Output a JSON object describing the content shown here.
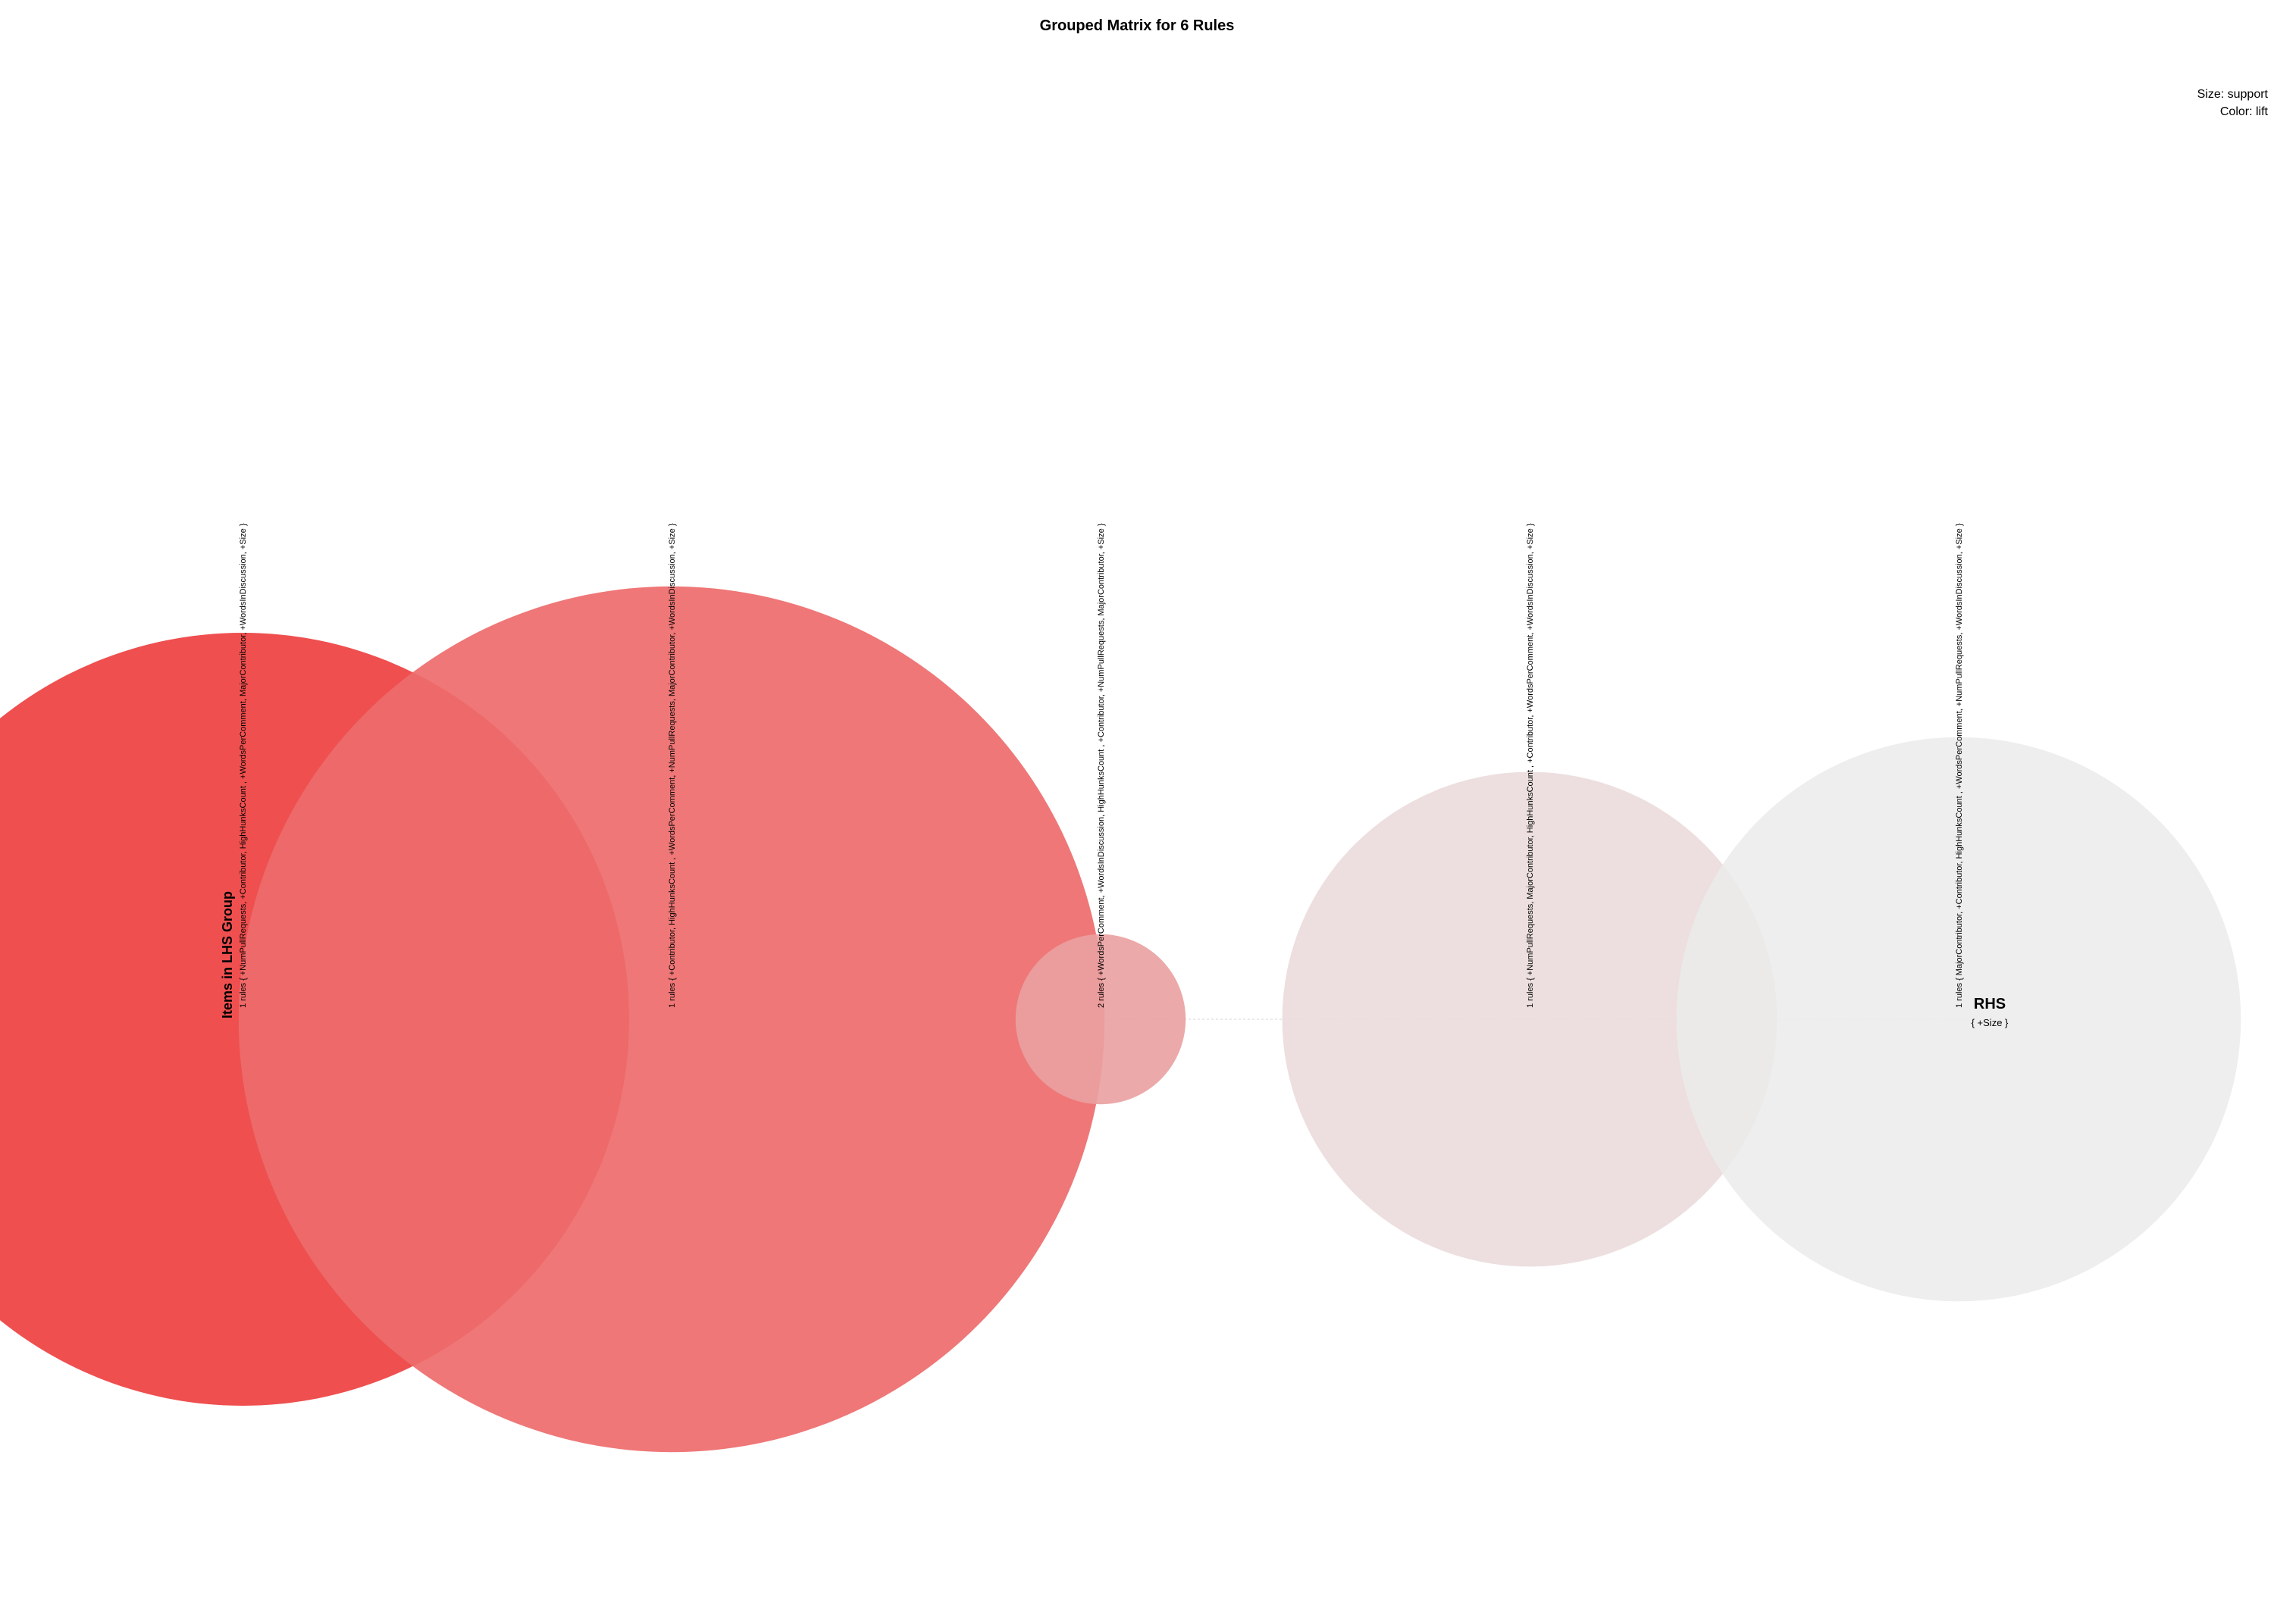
{
  "chart_data": {
    "type": "bubble-matrix",
    "title": "Grouped Matrix for 6 Rules",
    "legend": {
      "size_label": "Size: support",
      "color_label": "Color: lift",
      "placement": "top-right"
    },
    "x_axis_title": "Items in LHS Group",
    "y_axis_title": "RHS",
    "rhs_items": [
      "{ +Size }"
    ],
    "groups": [
      {
        "label": "1 rules { +NumPullRequests,  +Contributor,  HighHunksCount ,  +WordsPerComment,  MajorContributor,  +WordsInDiscussion,  +Size }",
        "rules": 1,
        "support": 1.0,
        "lift_rank": 1.0,
        "color": "#ef4f4f",
        "opacity": 1.0
      },
      {
        "label": "1 rules { +Contributor,  HighHunksCount ,  +WordsPerComment,  +NumPullRequests,  MajorContributor,  +WordsInDiscussion,  +Size }",
        "rules": 1,
        "support": 1.12,
        "lift_rank": 0.8,
        "color": "#ee6b6b",
        "opacity": 0.92
      },
      {
        "label": "2 rules { +WordsPerComment,  +WordsInDiscussion,  HighHunksCount ,  +Contributor,  +NumPullRequests,  MajorContributor,  +Size }",
        "rules": 2,
        "support": 0.22,
        "lift_rank": 0.5,
        "color": "#eaa0a0",
        "opacity": 0.9
      },
      {
        "label": "1 rules { +NumPullRequests,  MajorContributor,  HighHunksCount ,  +Contributor,  +WordsPerComment,  +WordsInDiscussion,  +Size }",
        "rules": 1,
        "support": 0.64,
        "lift_rank": 0.2,
        "color": "#ebdcdc",
        "opacity": 0.9
      },
      {
        "label": "1 rules { MajorContributor,  +Contributor,  HighHunksCount ,  +WordsPerComment,  +NumPullRequests,  +WordsInDiscussion,  +Size }",
        "rules": 1,
        "support": 0.73,
        "lift_rank": 0.0,
        "color": "#ebebeb",
        "opacity": 0.85
      }
    ]
  }
}
